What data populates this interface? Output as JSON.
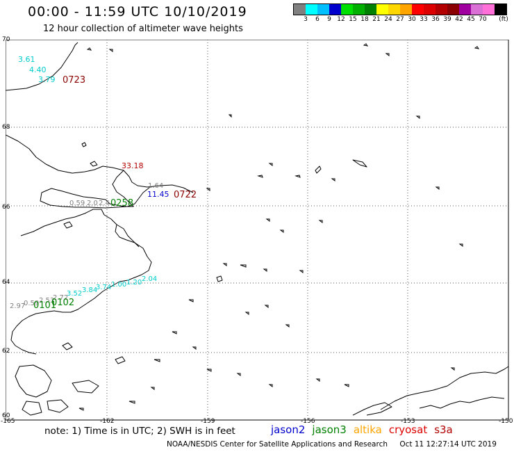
{
  "title": "00:00 - 11:59 UTC 10/10/2019",
  "subtitle": "12 hour collection of altimeter wave heights",
  "legend": {
    "unit": "(ft)",
    "labels": [
      "3",
      "6",
      "9",
      "12",
      "15",
      "18",
      "21",
      "24",
      "27",
      "30",
      "33",
      "36",
      "39",
      "42",
      "45",
      "70"
    ],
    "colors": [
      "#808080",
      "#00ffff",
      "#00bfff",
      "#0000cd",
      "#00e000",
      "#00b000",
      "#008000",
      "#ffff00",
      "#ffd700",
      "#ffa500",
      "#ff0000",
      "#dd0000",
      "#b20000",
      "#8b0000",
      "#a000a0",
      "#da70d6",
      "#ff70d8",
      "#000000"
    ]
  },
  "map": {
    "latitudes": [
      "70",
      "68",
      "66",
      "64",
      "62",
      "60"
    ],
    "longitudes": [
      "-165",
      "-162",
      "-159",
      "-156",
      "-153",
      "-150"
    ],
    "annotations": [
      {
        "text": "3.61",
        "color": "#00cccc"
      },
      {
        "text": "4.40",
        "color": "#00cccc"
      },
      {
        "text": "3.79",
        "color": "#00cccc"
      },
      {
        "text": "0723",
        "color": "#8b0000"
      },
      {
        "text": "33.18",
        "color": "#b20000"
      },
      {
        "text": "1.64",
        "color": "#808080"
      },
      {
        "text": "11.45",
        "color": "#0000cd"
      },
      {
        "text": "0722",
        "color": "#8b0000"
      },
      {
        "text": "0.59",
        "color": "#808080"
      },
      {
        "text": "2.0",
        "color": "#808080"
      },
      {
        "text": "2.4",
        "color": "#808080"
      },
      {
        "text": "0258",
        "color": "#008000"
      },
      {
        "text": "2.04",
        "color": "#00cccc"
      },
      {
        "text": "1.20",
        "color": "#00cccc"
      },
      {
        "text": "1.00",
        "color": "#00cccc"
      },
      {
        "text": "3.74",
        "color": "#00cccc"
      },
      {
        "text": "3.84",
        "color": "#00cccc"
      },
      {
        "text": "3.52",
        "color": "#00cccc"
      },
      {
        "text": "2.72",
        "color": "#808080"
      },
      {
        "text": "2.53",
        "color": "#808080"
      },
      {
        "text": "0.59",
        "color": "#808080"
      },
      {
        "text": "2.97",
        "color": "#808080"
      },
      {
        "text": "0101",
        "color": "#008000"
      },
      {
        "text": "0102",
        "color": "#008000"
      }
    ]
  },
  "note": "note:  1) Time is in UTC;  2) SWH is in feet",
  "satellites": [
    {
      "name": "jason2",
      "color": "#0000cd"
    },
    {
      "name": "jason3",
      "color": "#008000"
    },
    {
      "name": "altika",
      "color": "#ffa500"
    },
    {
      "name": "cryosat",
      "color": "#dd0000"
    },
    {
      "name": "s3a",
      "color": "#b20000"
    }
  ],
  "footer": {
    "center": "NOAA/NESDIS Center for Satellite Applications and Research",
    "timestamp": "Oct 11 12:27:14 UTC 2019"
  }
}
